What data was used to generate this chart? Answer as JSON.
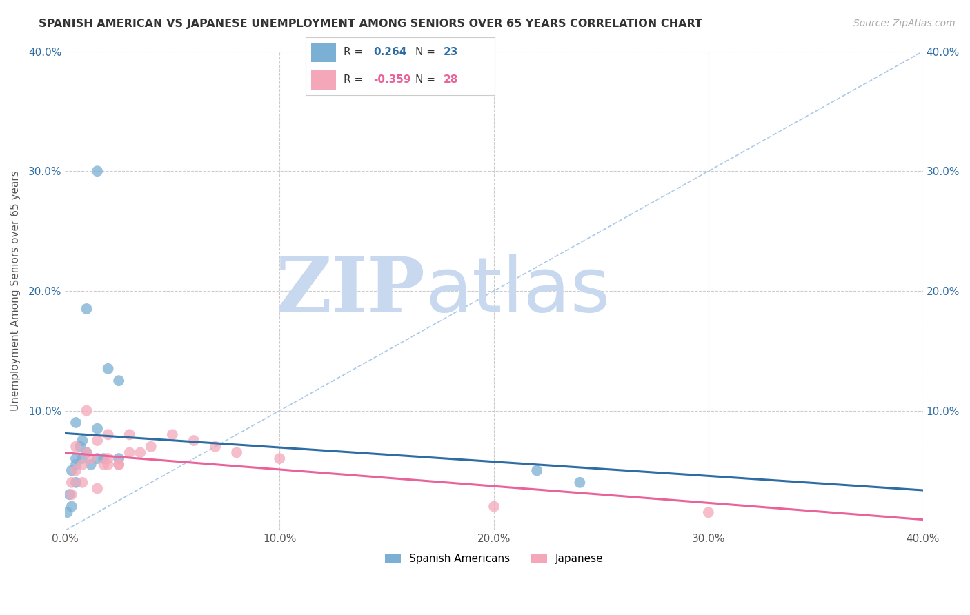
{
  "title": "SPANISH AMERICAN VS JAPANESE UNEMPLOYMENT AMONG SENIORS OVER 65 YEARS CORRELATION CHART",
  "source": "Source: ZipAtlas.com",
  "ylabel": "Unemployment Among Seniors over 65 years",
  "xlim": [
    0.0,
    0.4
  ],
  "ylim": [
    0.0,
    0.4
  ],
  "xticks": [
    0.0,
    0.1,
    0.2,
    0.3,
    0.4
  ],
  "yticks": [
    0.0,
    0.1,
    0.2,
    0.3,
    0.4
  ],
  "xtick_labels": [
    "0.0%",
    "10.0%",
    "20.0%",
    "30.0%",
    "40.0%"
  ],
  "ytick_labels": [
    "",
    "10.0%",
    "20.0%",
    "30.0%",
    "40.0%"
  ],
  "blue_R": "0.264",
  "blue_N": "23",
  "pink_R": "-0.359",
  "pink_N": "28",
  "blue_color": "#7bafd4",
  "pink_color": "#f4a7b9",
  "blue_line_color": "#2e6da4",
  "pink_line_color": "#e8639a",
  "diagonal_color": "#aac8e8",
  "watermark_zip": "ZIP",
  "watermark_atlas": "atlas",
  "watermark_color_zip": "#c8d8ee",
  "watermark_color_atlas": "#c8d8ee",
  "background_color": "#ffffff",
  "grid_color": "#cccccc",
  "blue_scatter_x": [
    0.005,
    0.015,
    0.025,
    0.005,
    0.01,
    0.007,
    0.003,
    0.002,
    0.001,
    0.003,
    0.005,
    0.008,
    0.012,
    0.018,
    0.01,
    0.02,
    0.025,
    0.015,
    0.005,
    0.008,
    0.22,
    0.24,
    0.015
  ],
  "blue_scatter_y": [
    0.09,
    0.085,
    0.125,
    0.06,
    0.065,
    0.07,
    0.05,
    0.03,
    0.015,
    0.02,
    0.04,
    0.06,
    0.055,
    0.06,
    0.185,
    0.135,
    0.06,
    0.06,
    0.055,
    0.075,
    0.05,
    0.04,
    0.3
  ],
  "pink_scatter_x": [
    0.005,
    0.01,
    0.015,
    0.02,
    0.025,
    0.03,
    0.005,
    0.008,
    0.003,
    0.012,
    0.018,
    0.025,
    0.035,
    0.02,
    0.03,
    0.04,
    0.015,
    0.008,
    0.003,
    0.05,
    0.06,
    0.07,
    0.08,
    0.1,
    0.2,
    0.3,
    0.01,
    0.02
  ],
  "pink_scatter_y": [
    0.07,
    0.065,
    0.075,
    0.06,
    0.055,
    0.065,
    0.05,
    0.055,
    0.04,
    0.06,
    0.055,
    0.055,
    0.065,
    0.08,
    0.08,
    0.07,
    0.035,
    0.04,
    0.03,
    0.08,
    0.075,
    0.07,
    0.065,
    0.06,
    0.02,
    0.015,
    0.1,
    0.055
  ]
}
